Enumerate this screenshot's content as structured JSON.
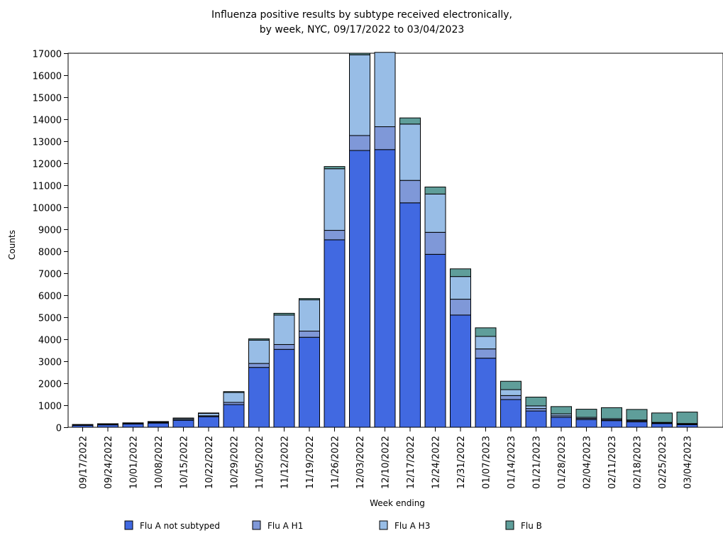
{
  "chart_data": {
    "type": "bar",
    "stacked": true,
    "title_line1": "Influenza positive results by subtype received electronically,",
    "title_line2": "by week, NYC, 09/17/2022 to 03/04/2023",
    "xlabel": "Week ending",
    "ylabel": "Counts",
    "ylim": [
      0,
      17000
    ],
    "yticks": [
      0,
      1000,
      2000,
      3000,
      4000,
      5000,
      6000,
      7000,
      8000,
      9000,
      10000,
      11000,
      12000,
      13000,
      14000,
      15000,
      16000,
      17000
    ],
    "categories": [
      "09/17/2022",
      "09/24/2022",
      "10/01/2022",
      "10/08/2022",
      "10/15/2022",
      "10/22/2022",
      "10/29/2022",
      "11/05/2022",
      "11/12/2022",
      "11/19/2022",
      "11/26/2022",
      "12/03/2022",
      "12/10/2022",
      "12/17/2022",
      "12/24/2022",
      "12/31/2022",
      "01/07/2023",
      "01/14/2023",
      "01/21/2023",
      "01/28/2023",
      "02/04/2023",
      "02/11/2023",
      "02/18/2023",
      "02/25/2023",
      "03/04/2023"
    ],
    "series": [
      {
        "name": "Flu A not subtyped",
        "color": "#4169e1",
        "values": [
          90,
          110,
          150,
          190,
          320,
          480,
          1030,
          2720,
          3540,
          4090,
          8520,
          12580,
          12620,
          10200,
          7860,
          5100,
          3140,
          1260,
          740,
          450,
          350,
          300,
          250,
          170,
          120
        ]
      },
      {
        "name": "Flu A H1",
        "color": "#7f98d8",
        "values": [
          10,
          15,
          15,
          20,
          30,
          40,
          100,
          180,
          220,
          280,
          430,
          680,
          1040,
          1020,
          1000,
          720,
          420,
          180,
          110,
          70,
          50,
          40,
          40,
          20,
          20
        ]
      },
      {
        "name": "Flu A H3",
        "color": "#98bde6",
        "values": [
          20,
          30,
          30,
          40,
          60,
          110,
          450,
          1060,
          1340,
          1420,
          2800,
          3670,
          3380,
          2560,
          1740,
          1030,
          570,
          270,
          120,
          90,
          50,
          50,
          40,
          30,
          30
        ]
      },
      {
        "name": "Flu B",
        "color": "#5f9e9a",
        "values": [
          5,
          5,
          5,
          10,
          10,
          20,
          40,
          60,
          80,
          60,
          100,
          70,
          0,
          280,
          320,
          350,
          390,
          380,
          400,
          330,
          370,
          500,
          480,
          430,
          520
        ]
      }
    ]
  }
}
